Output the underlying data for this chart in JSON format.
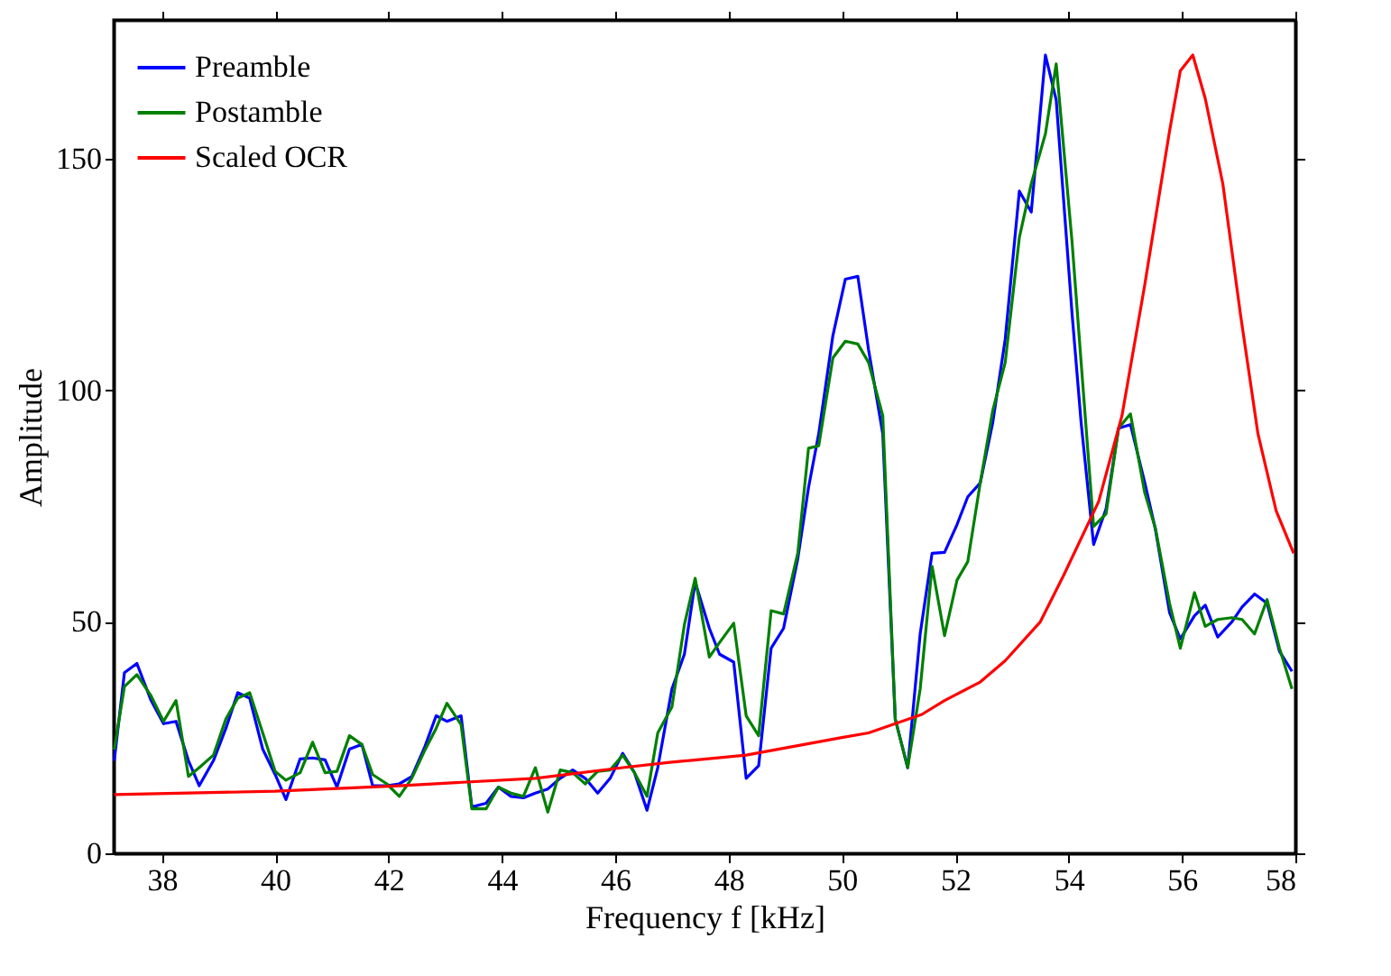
{
  "chart_data": {
    "type": "line",
    "xlabel": "Frequency f [kHz]",
    "ylabel": "Amplitude",
    "x": [
      37.16,
      37.34,
      37.56,
      37.81,
      38.03,
      38.25,
      38.47,
      38.66,
      38.91,
      39.13,
      39.34,
      39.55,
      39.78,
      40.0,
      40.19,
      40.44,
      40.66,
      40.88,
      41.09,
      41.31,
      41.53,
      41.72,
      41.97,
      42.19,
      42.41,
      42.63,
      42.84,
      43.03,
      43.28,
      43.47,
      43.72,
      43.94,
      44.16,
      44.38,
      44.59,
      44.81,
      45.03,
      45.25,
      45.47,
      45.69,
      45.91,
      46.13,
      46.34,
      46.56,
      46.75,
      47.0,
      47.22,
      47.41,
      47.66,
      47.84,
      48.09,
      48.31,
      48.53,
      48.75,
      48.97,
      49.22,
      49.41,
      49.59,
      49.84,
      50.06,
      50.28,
      50.47,
      50.72,
      50.94,
      51.16,
      51.38,
      51.59,
      51.81,
      52.03,
      52.22,
      52.44,
      52.66,
      52.88,
      53.13,
      53.34,
      53.59,
      53.78,
      54.06,
      54.22,
      54.44,
      54.66,
      54.88,
      55.09,
      55.34,
      55.53,
      55.78,
      55.97,
      56.22,
      56.41,
      56.63,
      56.88,
      57.06,
      57.28,
      57.5,
      57.72,
      57.94
    ],
    "series": [
      {
        "name": "Preamble",
        "color": "#0000ff",
        "values": [
          20,
          39,
          41,
          33,
          28,
          28.5,
          20,
          14.6,
          20,
          27,
          34.7,
          33.5,
          22.5,
          17,
          11.6,
          20.4,
          20.6,
          20.2,
          14.3,
          22.5,
          23.5,
          14.6,
          14.6,
          15,
          16.6,
          22.7,
          29.7,
          28.5,
          29.7,
          10,
          10.8,
          14.3,
          12.3,
          12,
          13,
          13.9,
          16.2,
          18,
          16.2,
          13,
          16.2,
          21.6,
          17.4,
          9.3,
          18.5,
          35.5,
          43,
          58.6,
          48.6,
          43,
          41.3,
          16.2,
          18.9,
          44.3,
          48.6,
          63.6,
          79,
          90.6,
          111.8,
          124,
          124.6,
          108.7,
          90.6,
          29,
          18.5,
          47.4,
          64.8,
          65,
          71,
          77,
          80,
          93,
          111,
          143,
          138.5,
          172.4,
          162.7,
          116.5,
          93,
          66.7,
          74.4,
          91.8,
          92.6,
          80.2,
          70,
          52,
          46.3,
          51.3,
          53.6,
          46.7,
          50,
          53.2,
          56,
          54,
          43.6,
          39.3
        ]
      },
      {
        "name": "Postamble",
        "color": "#008000",
        "values": [
          22.4,
          36,
          38.6,
          34,
          28.5,
          33,
          16.6,
          18.5,
          21.2,
          29,
          33.5,
          34.7,
          26,
          17.7,
          15.8,
          17.4,
          24,
          17.4,
          17.7,
          25.4,
          23.5,
          17,
          15,
          12.3,
          16.2,
          22,
          27,
          32.4,
          27.8,
          9.6,
          9.6,
          14.3,
          13,
          12.3,
          18.5,
          8.9,
          18,
          17.4,
          15,
          17.7,
          18,
          21.2,
          17.4,
          12.3,
          26,
          31.6,
          49.4,
          59.4,
          42.4,
          45.5,
          49.7,
          29.7,
          25.4,
          52.4,
          51.7,
          64.8,
          87.5,
          88,
          107,
          110.6,
          110,
          106,
          94.5,
          29,
          18.5,
          35.5,
          62,
          47,
          59,
          63,
          80,
          95.6,
          106,
          133,
          144.6,
          155.4,
          170.5,
          132,
          106,
          70.6,
          73.3,
          91.8,
          94.9,
          78,
          70.2,
          54,
          44.3,
          56.3,
          49,
          50.5,
          50.9,
          50.5,
          47.4,
          54.8,
          44.3,
          35.5
        ]
      },
      {
        "name": "Scaled OCR",
        "color": "#ff0000",
        "x": [
          37.16,
          40.0,
          42.19,
          44.59,
          46.13,
          47.0,
          48.31,
          50.0,
          50.47,
          51.41,
          51.81,
          52.44,
          52.88,
          53.5,
          53.91,
          54.53,
          54.94,
          55.34,
          55.78,
          55.97,
          56.19,
          56.41,
          56.72,
          57.03,
          57.34,
          57.66,
          57.97
        ],
        "values": [
          12.7,
          13.4,
          14.6,
          16.2,
          18.5,
          19.7,
          21.2,
          25,
          26,
          30,
          33,
          37,
          41.6,
          50,
          60,
          76,
          94.5,
          122.6,
          156,
          169,
          172.4,
          163,
          144.6,
          116.5,
          90.6,
          74,
          64.8
        ]
      }
    ],
    "xlim": [
      37.15,
      58
    ],
    "xticks": [
      38,
      40,
      42,
      44,
      46,
      48,
      50,
      52,
      54,
      56,
      58
    ],
    "ylim": [
      0,
      180
    ],
    "yticks": [
      0,
      50,
      100,
      150
    ],
    "grid": false,
    "legend": "top left",
    "marker": "none",
    "line_style": "solid"
  }
}
